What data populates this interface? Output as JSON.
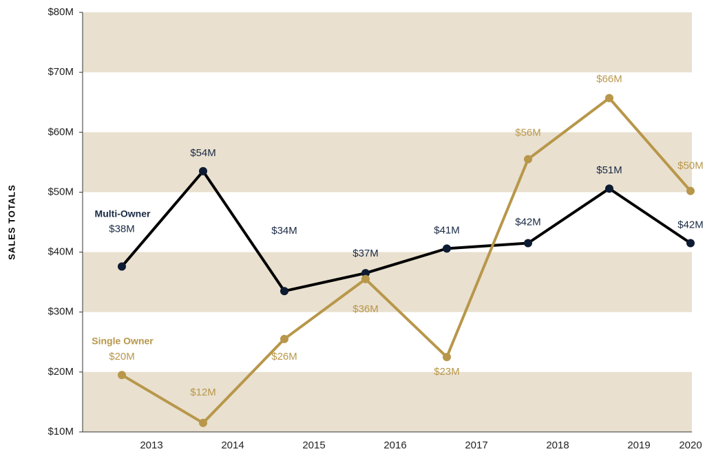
{
  "chart_data": {
    "type": "line",
    "y_label": "SALES TOTALS",
    "categories": [
      "2013",
      "2014",
      "2015",
      "2016",
      "2017",
      "2018",
      "2019",
      "2020"
    ],
    "series": [
      {
        "name": "Multi-Owner",
        "color": "#000000",
        "marker_color": "#0d1b33",
        "label_color": "#1a2a44",
        "values": [
          37.6,
          53.5,
          33.5,
          36.5,
          40.6,
          41.5,
          50.6,
          41.5
        ],
        "value_labels": [
          "$38M",
          "$54M",
          "$34M",
          "$37M",
          "$41M",
          "$42M",
          "$51M",
          "$42M"
        ]
      },
      {
        "name": "Single Owner",
        "color": "#b8974a",
        "marker_color": "#b8974a",
        "label_color": "#b8974a",
        "values": [
          19.5,
          11.5,
          25.5,
          35.5,
          22.5,
          55.5,
          65.7,
          50.2
        ],
        "value_labels": [
          "$20M",
          "$12M",
          "$26M",
          "$36M",
          "$23M",
          "$56M",
          "$66M",
          "$50M"
        ]
      }
    ],
    "ylim": [
      10,
      80
    ],
    "yticks": [
      {
        "value": 10,
        "label": "$10M"
      },
      {
        "value": 20,
        "label": "$20M"
      },
      {
        "value": 30,
        "label": "$30M"
      },
      {
        "value": 40,
        "label": "$40M"
      },
      {
        "value": 50,
        "label": "$50M"
      },
      {
        "value": 60,
        "label": "$60M"
      },
      {
        "value": 70,
        "label": "$70M"
      },
      {
        "value": 80,
        "label": "$80M"
      }
    ],
    "band_color": "#e9e0cf"
  }
}
